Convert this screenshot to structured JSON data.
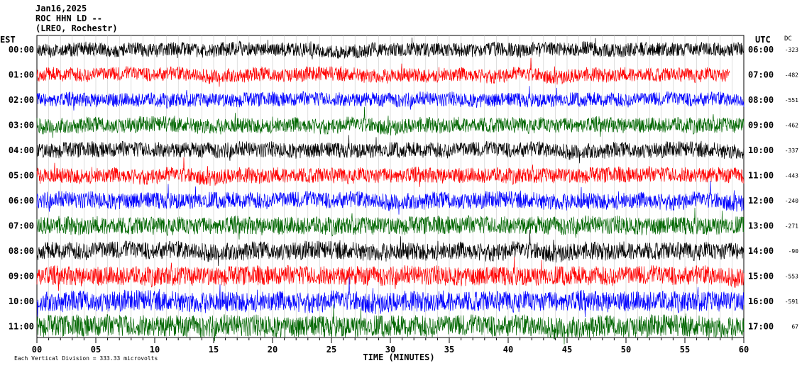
{
  "header": {
    "date": "Jan16,2025",
    "station": "ROC HHN LD --",
    "location": "(LREO, Rochestr)"
  },
  "left_axis_label": "EST",
  "right_axis_label": "UTC",
  "dc_label": "DC",
  "x_axis_title": "TIME (MINUTES)",
  "footnote": "Each Vertical Division =  333.33 microvolts",
  "chart_data": {
    "type": "line",
    "subtype": "helicorder",
    "xlabel": "TIME (MINUTES)",
    "xlim": [
      0,
      60
    ],
    "x_ticks": [
      "00",
      "05",
      "10",
      "15",
      "20",
      "25",
      "30",
      "35",
      "40",
      "45",
      "50",
      "55",
      "60"
    ],
    "trace_colors": [
      "#000000",
      "#ff0000",
      "#0000ff",
      "#006600"
    ],
    "rows": [
      {
        "est": "00:00",
        "utc": "06:00",
        "dc": "-323",
        "color": "#000000",
        "amp": 0.55
      },
      {
        "est": "01:00",
        "utc": "07:00",
        "dc": "-482",
        "color": "#ff0000",
        "amp": 0.55
      },
      {
        "est": "02:00",
        "utc": "08:00",
        "dc": "-551",
        "color": "#0000ff",
        "amp": 0.55
      },
      {
        "est": "03:00",
        "utc": "09:00",
        "dc": "-462",
        "color": "#006600",
        "amp": 0.6
      },
      {
        "est": "04:00",
        "utc": "10:00",
        "dc": "-337",
        "color": "#000000",
        "amp": 0.6
      },
      {
        "est": "05:00",
        "utc": "11:00",
        "dc": "-443",
        "color": "#ff0000",
        "amp": 0.6
      },
      {
        "est": "06:00",
        "utc": "12:00",
        "dc": "-240",
        "color": "#0000ff",
        "amp": 0.65
      },
      {
        "est": "07:00",
        "utc": "13:00",
        "dc": "-271",
        "color": "#006600",
        "amp": 0.7
      },
      {
        "est": "08:00",
        "utc": "14:00",
        "dc": "-90",
        "color": "#000000",
        "amp": 0.7
      },
      {
        "est": "09:00",
        "utc": "15:00",
        "dc": "-553",
        "color": "#ff0000",
        "amp": 0.75
      },
      {
        "est": "10:00",
        "utc": "16:00",
        "dc": "-591",
        "color": "#0000ff",
        "amp": 0.8
      },
      {
        "est": "11:00",
        "utc": "17:00",
        "dc": "67",
        "color": "#006600",
        "amp": 0.85
      }
    ]
  }
}
